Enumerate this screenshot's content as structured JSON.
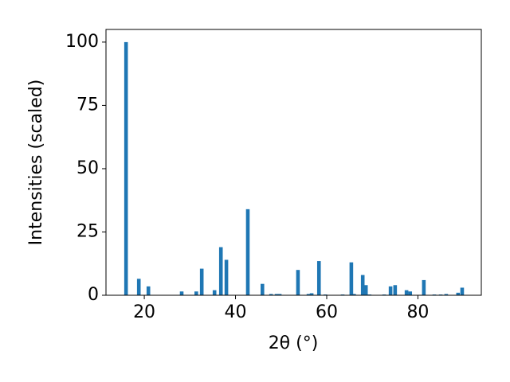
{
  "chart_data": {
    "type": "bar",
    "x_label": "2θ (°)",
    "y_label": "Intensities (scaled)",
    "x": [
      16.0,
      18.8,
      20.9,
      28.2,
      31.4,
      32.6,
      35.4,
      36.8,
      38.0,
      42.7,
      45.9,
      47.8,
      49.0,
      49.7,
      53.7,
      56.0,
      56.7,
      58.3,
      59.7,
      63.5,
      65.4,
      66.0,
      67.9,
      68.6,
      69.4,
      72.6,
      74.0,
      75.0,
      77.5,
      78.3,
      81.3,
      83.6,
      85.0,
      86.2,
      88.8,
      89.7
    ],
    "values": [
      100,
      6.5,
      3.5,
      1.5,
      1.5,
      10.5,
      2,
      19,
      14,
      34,
      4.5,
      0.5,
      0.5,
      0.5,
      10,
      0.5,
      0.8,
      13.5,
      0.3,
      0.3,
      13,
      0.5,
      8,
      4,
      0.3,
      0.3,
      3.5,
      4,
      2,
      1.5,
      6,
      0.3,
      0.3,
      0.5,
      1,
      3
    ],
    "color": "#1f77b4",
    "xlim": [
      11.6,
      93.9
    ],
    "ylim": [
      0,
      105
    ],
    "xticks": [
      20,
      40,
      60,
      80
    ],
    "yticks": [
      0,
      25,
      50,
      75,
      100
    ]
  }
}
